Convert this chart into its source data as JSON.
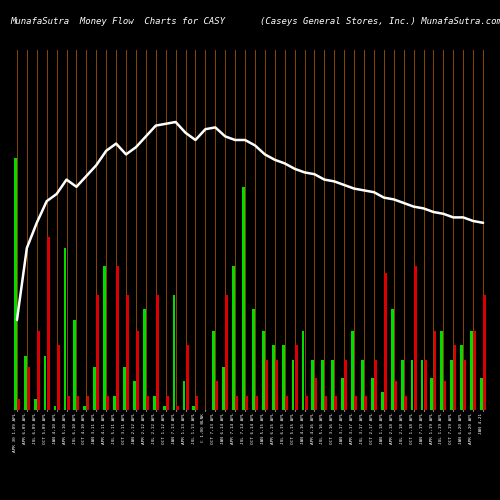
{
  "title_left": "MunafaSutra  Money Flow  Charts for CASY",
  "title_right": "(Caseys General Stores, Inc.) MunafaSutra.com",
  "bg_color": "#000000",
  "bar_line_color": "#8B4500",
  "line_color": "#ffffff",
  "categories": [
    "APR 30 1,09 APL",
    "APR 6,09 APL",
    "JUL 6,09 APL",
    "OCT 5,09 APL",
    "JAN 4,10 APL",
    "APR 5,10 APL",
    "JUL 6,10 APL",
    "OCT 4,10 APL",
    "JAN 3,11 APL",
    "APR 4,11 APL",
    "JUL 5,11 APL",
    "OCT 3,11 APL",
    "JAN 2,12 APL",
    "APR 2,12 APL",
    "JUL 2,12 APL",
    "OCT 1,12 APL",
    "JAN 7,13 APL",
    "APR 1,13 APL",
    "JUL 1,13 APL",
    "C 1,00 BLNK",
    "OCT 7,13 APL",
    "JAN 6,14 APL",
    "APR 7,14 APL",
    "JUL 7,14 APL",
    "OCT 6,14 APL",
    "JAN 5,15 APL",
    "APR 6,15 APL",
    "JUL 6,15 APL",
    "OCT 5,15 APL",
    "JAN 4,16 APL",
    "APR 4,16 APL",
    "JUL 5,16 APL",
    "OCT 3,16 APL",
    "JAN 3,17 APL",
    "APR 3,17 APL",
    "JUL 3,17 APL",
    "OCT 2,17 APL",
    "JAN 1,18 APL",
    "APR 2,18 APL",
    "JUL 2,18 APL",
    "OCT 1,18 APL",
    "JAN 7,19 APL",
    "APR 1,19 APL",
    "JUL 1,19 APL",
    "OCT 7,19 APL",
    "JAN 6,20 APL",
    "APR 6,20 APL",
    "JAN 4,21"
  ],
  "green_values": [
    7.0,
    1.5,
    0.3,
    1.5,
    0.1,
    4.5,
    2.5,
    0.1,
    1.2,
    4.0,
    0.4,
    1.2,
    0.8,
    2.8,
    0.4,
    0.1,
    3.2,
    0.8,
    0.1,
    0.0,
    2.2,
    1.2,
    4.0,
    6.2,
    2.8,
    2.2,
    1.8,
    1.8,
    1.4,
    2.2,
    1.4,
    1.4,
    1.4,
    0.9,
    2.2,
    1.4,
    0.9,
    0.5,
    2.8,
    1.4,
    1.4,
    1.4,
    0.9,
    2.2,
    1.4,
    1.8,
    2.2,
    0.9
  ],
  "red_values": [
    0.3,
    1.2,
    2.2,
    4.8,
    1.8,
    0.4,
    0.4,
    0.4,
    3.2,
    0.4,
    4.0,
    3.2,
    2.2,
    0.4,
    3.2,
    0.4,
    0.1,
    1.8,
    0.4,
    0.0,
    0.8,
    3.2,
    0.4,
    0.4,
    0.4,
    1.4,
    1.4,
    0.4,
    1.8,
    0.4,
    0.9,
    0.4,
    0.4,
    1.4,
    0.4,
    0.4,
    1.4,
    3.8,
    0.8,
    0.4,
    4.0,
    1.4,
    2.2,
    0.8,
    1.8,
    1.4,
    2.2,
    3.2
  ],
  "price_line": [
    2.5,
    4.5,
    5.2,
    5.8,
    6.0,
    6.4,
    6.2,
    6.5,
    6.8,
    7.2,
    7.4,
    7.1,
    7.3,
    7.6,
    7.9,
    7.95,
    8.0,
    7.7,
    7.5,
    7.8,
    7.85,
    7.6,
    7.5,
    7.5,
    7.35,
    7.1,
    6.95,
    6.85,
    6.7,
    6.6,
    6.55,
    6.4,
    6.35,
    6.25,
    6.15,
    6.1,
    6.05,
    5.9,
    5.85,
    5.75,
    5.65,
    5.6,
    5.5,
    5.45,
    5.35,
    5.35,
    5.25,
    5.2
  ],
  "ylim_max": 10.0,
  "fig_w": 5.0,
  "fig_h": 5.0,
  "dpi": 100
}
